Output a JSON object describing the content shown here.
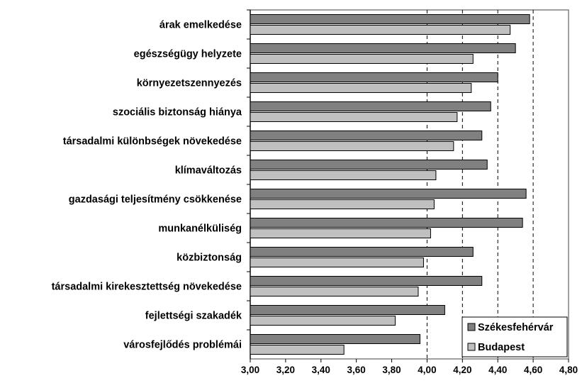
{
  "chart_data": {
    "type": "bar",
    "orientation": "horizontal",
    "categories": [
      "árak emelkedése",
      "egészségügy helyzete",
      "környezetszennyezés",
      "szociális biztonság hiánya",
      "társadalmi különbségek növekedése",
      "klímaváltozás",
      "gazdasági teljesítmény csökkenése",
      "munkanélküliség",
      "közbiztonság",
      "társadalmi kirekesztettség növekedése",
      "fejlettségi szakadék",
      "városfejlődés problémái"
    ],
    "series": [
      {
        "name": "Székesfehérvár",
        "color": "#808080",
        "values": [
          4.58,
          4.5,
          4.4,
          4.36,
          4.31,
          4.34,
          4.56,
          4.54,
          4.26,
          4.31,
          4.1,
          3.96
        ]
      },
      {
        "name": "Budapest",
        "color": "#c0c0c0",
        "values": [
          4.47,
          4.26,
          4.25,
          4.17,
          4.15,
          4.05,
          4.04,
          4.02,
          3.98,
          3.95,
          3.82,
          3.53
        ]
      }
    ],
    "xlim": [
      3.0,
      4.8
    ],
    "xticks": [
      "3,00",
      "3,20",
      "3,40",
      "3,60",
      "3,80",
      "4,00",
      "4,20",
      "4,40",
      "4,60",
      "4,80"
    ],
    "title": "",
    "xlabel": "",
    "ylabel": "",
    "grid": "vertical dashed at 4,00 4,20 4,40 4,60",
    "legend_position": "bottom-right"
  }
}
